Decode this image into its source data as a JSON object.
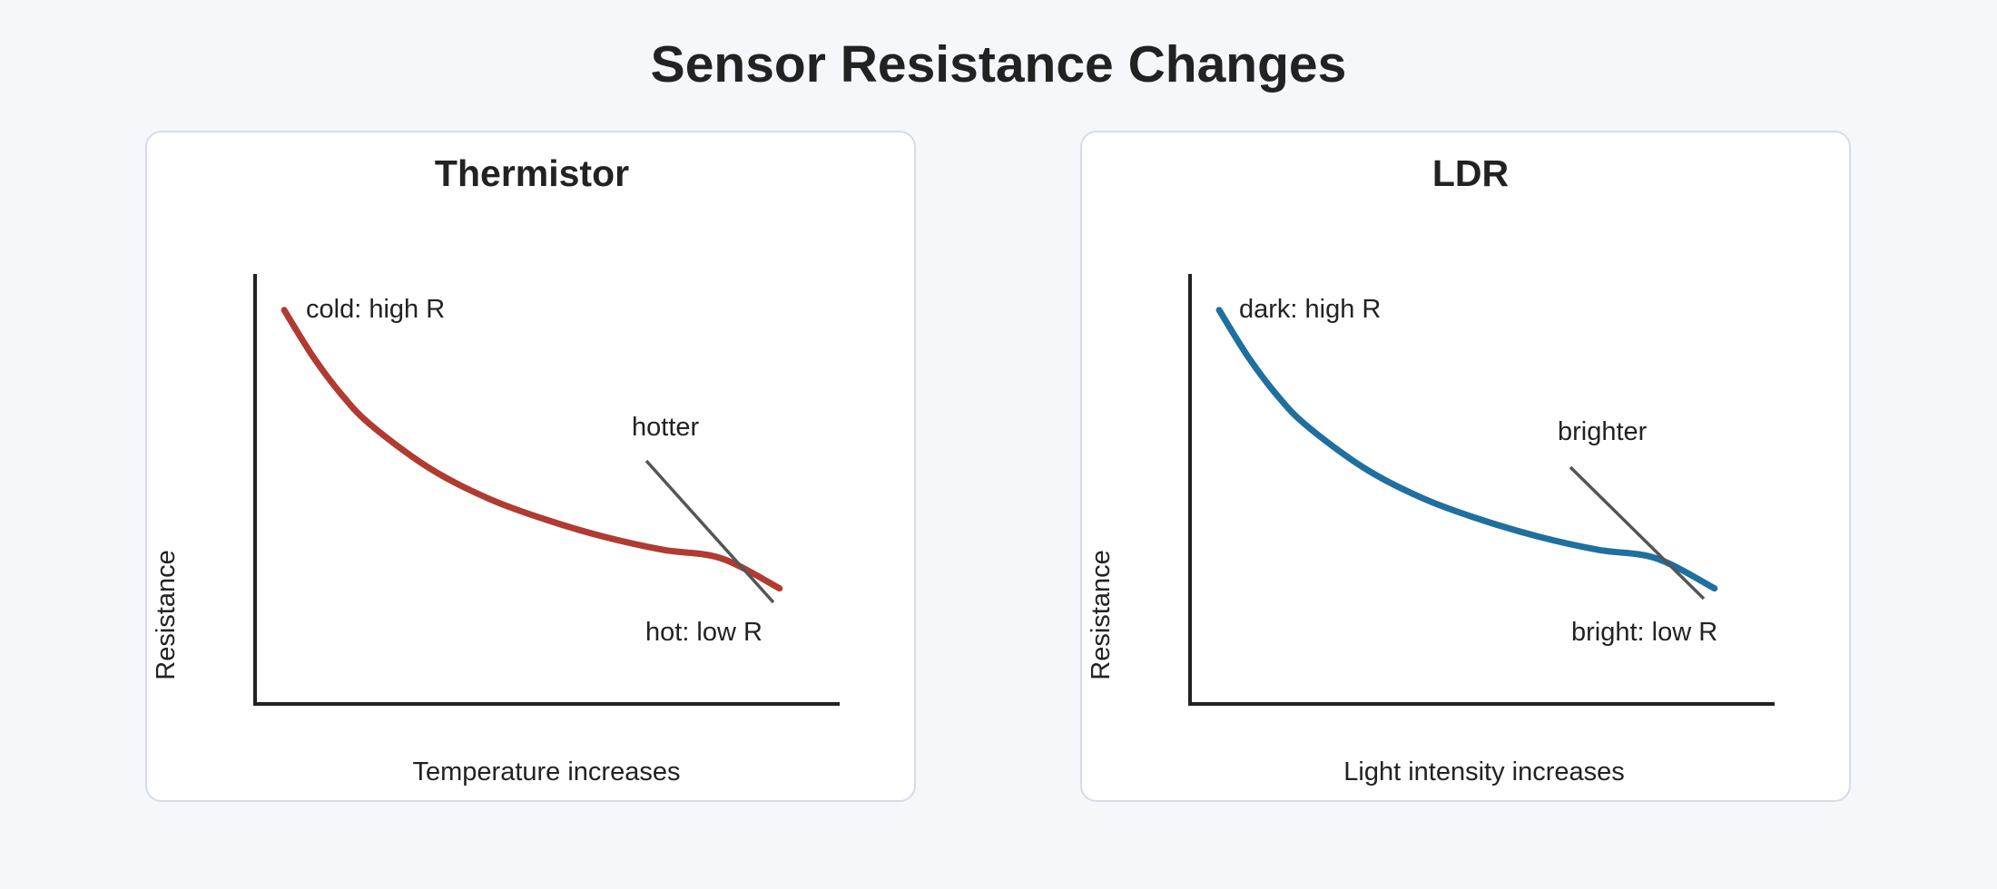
{
  "title": "Sensor Resistance Changes",
  "chart_data": [
    {
      "type": "line",
      "title": "Thermistor",
      "xlabel": "Temperature increases",
      "ylabel": "Resistance",
      "color": "#b13a31",
      "x_ticks": [],
      "y_ticks": [],
      "x": [
        0.05,
        0.1,
        0.15,
        0.2,
        0.3,
        0.4,
        0.5,
        0.6,
        0.7,
        0.8,
        0.9
      ],
      "series": [
        {
          "values": [
            0.92,
            0.81,
            0.72,
            0.65,
            0.55,
            0.48,
            0.43,
            0.39,
            0.36,
            0.34,
            0.27
          ]
        }
      ],
      "annotations": {
        "start": "cold: high R",
        "end": "hot: low R",
        "arrow": "hotter"
      }
    },
    {
      "type": "line",
      "title": "LDR",
      "xlabel": "Light intensity increases",
      "ylabel": "Resistance",
      "color": "#1f6f9f",
      "x_ticks": [],
      "y_ticks": [],
      "x": [
        0.05,
        0.1,
        0.15,
        0.2,
        0.3,
        0.4,
        0.5,
        0.6,
        0.7,
        0.8,
        0.9
      ],
      "series": [
        {
          "values": [
            0.92,
            0.81,
            0.72,
            0.65,
            0.55,
            0.48,
            0.43,
            0.39,
            0.36,
            0.34,
            0.27
          ]
        }
      ],
      "annotations": {
        "start": "dark: high R",
        "end": "bright: low R",
        "arrow": "brighter"
      }
    }
  ]
}
